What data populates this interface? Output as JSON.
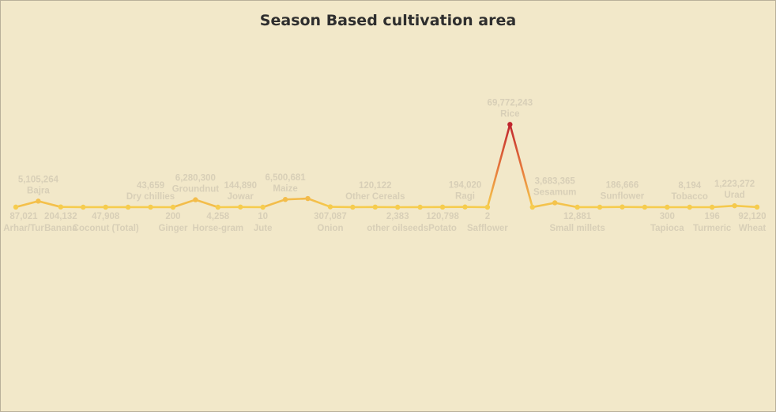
{
  "chart_data": {
    "type": "line",
    "title": "Season Based cultivation area",
    "xlabel": "",
    "ylabel": "",
    "colors": {
      "low": "#f6cc4e",
      "high": "#c0242e",
      "background": "#f2e8c9"
    },
    "points": [
      {
        "value": "87,021",
        "label": "Arhar/Tur",
        "y": 87021,
        "label_position": "below"
      },
      {
        "value": "5,105,264",
        "label": "Bajra",
        "y": 5105264,
        "label_position": "above"
      },
      {
        "value": "204,132",
        "label": "Banana",
        "y": 204132,
        "label_position": "below"
      },
      {
        "value": "",
        "label": "",
        "y": 30000,
        "label_position": "none"
      },
      {
        "value": "47,908",
        "label": "Coconut (Total)",
        "y": 47908,
        "label_position": "below"
      },
      {
        "value": "",
        "label": "",
        "y": 30000,
        "label_position": "none"
      },
      {
        "value": "43,659",
        "label": "Dry chillies",
        "y": 43659,
        "label_position": "above"
      },
      {
        "value": "200",
        "label": "Ginger",
        "y": 200,
        "label_position": "below"
      },
      {
        "value": "6,280,300",
        "label": "Groundnut",
        "y": 6280300,
        "label_position": "above"
      },
      {
        "value": "4,258",
        "label": "Horse-gram",
        "y": 4258,
        "label_position": "below"
      },
      {
        "value": "144,890",
        "label": "Jowar",
        "y": 144890,
        "label_position": "above"
      },
      {
        "value": "10",
        "label": "Jute",
        "y": 10,
        "label_position": "below"
      },
      {
        "value": "6,500,681",
        "label": "Maize",
        "y": 6500681,
        "label_position": "above"
      },
      {
        "value": "",
        "label": "",
        "y": 7300000,
        "label_position": "none"
      },
      {
        "value": "307,087",
        "label": "Onion",
        "y": 307087,
        "label_position": "below"
      },
      {
        "value": "",
        "label": "",
        "y": 30000,
        "label_position": "none"
      },
      {
        "value": "120,122",
        "label": "Other Cereals",
        "y": 120122,
        "label_position": "above"
      },
      {
        "value": "2,383",
        "label": "other oilseeds",
        "y": 2383,
        "label_position": "below"
      },
      {
        "value": "",
        "label": "",
        "y": 30000,
        "label_position": "none"
      },
      {
        "value": "120,798",
        "label": "Potato",
        "y": 120798,
        "label_position": "below"
      },
      {
        "value": "194,020",
        "label": "Ragi",
        "y": 194020,
        "label_position": "above"
      },
      {
        "value": "2",
        "label": "Safflower",
        "y": 2,
        "label_position": "below"
      },
      {
        "value": "69,772,243",
        "label": "Rice",
        "y": 69772243,
        "label_position": "above"
      },
      {
        "value": "",
        "label": "",
        "y": 30000,
        "label_position": "none"
      },
      {
        "value": "3,683,365",
        "label": "Sesamum",
        "y": 3683365,
        "label_position": "above"
      },
      {
        "value": "12,881",
        "label": "Small millets",
        "y": 12881,
        "label_position": "below"
      },
      {
        "value": "",
        "label": "",
        "y": 30000,
        "label_position": "none"
      },
      {
        "value": "186,666",
        "label": "Sunflower",
        "y": 186666,
        "label_position": "above"
      },
      {
        "value": "",
        "label": "",
        "y": 30000,
        "label_position": "none"
      },
      {
        "value": "300",
        "label": "Tapioca",
        "y": 300,
        "label_position": "below"
      },
      {
        "value": "8,194",
        "label": "Tobacco",
        "y": 8194,
        "label_position": "above"
      },
      {
        "value": "196",
        "label": "Turmeric",
        "y": 196,
        "label_position": "below"
      },
      {
        "value": "1,223,272",
        "label": "Urad",
        "y": 1223272,
        "label_position": "above"
      },
      {
        "value": "92,120",
        "label": "Wheat",
        "y": 92120,
        "label_position": "below"
      }
    ],
    "ylim": [
      0,
      70000000
    ],
    "grid": false,
    "legend": "none"
  }
}
